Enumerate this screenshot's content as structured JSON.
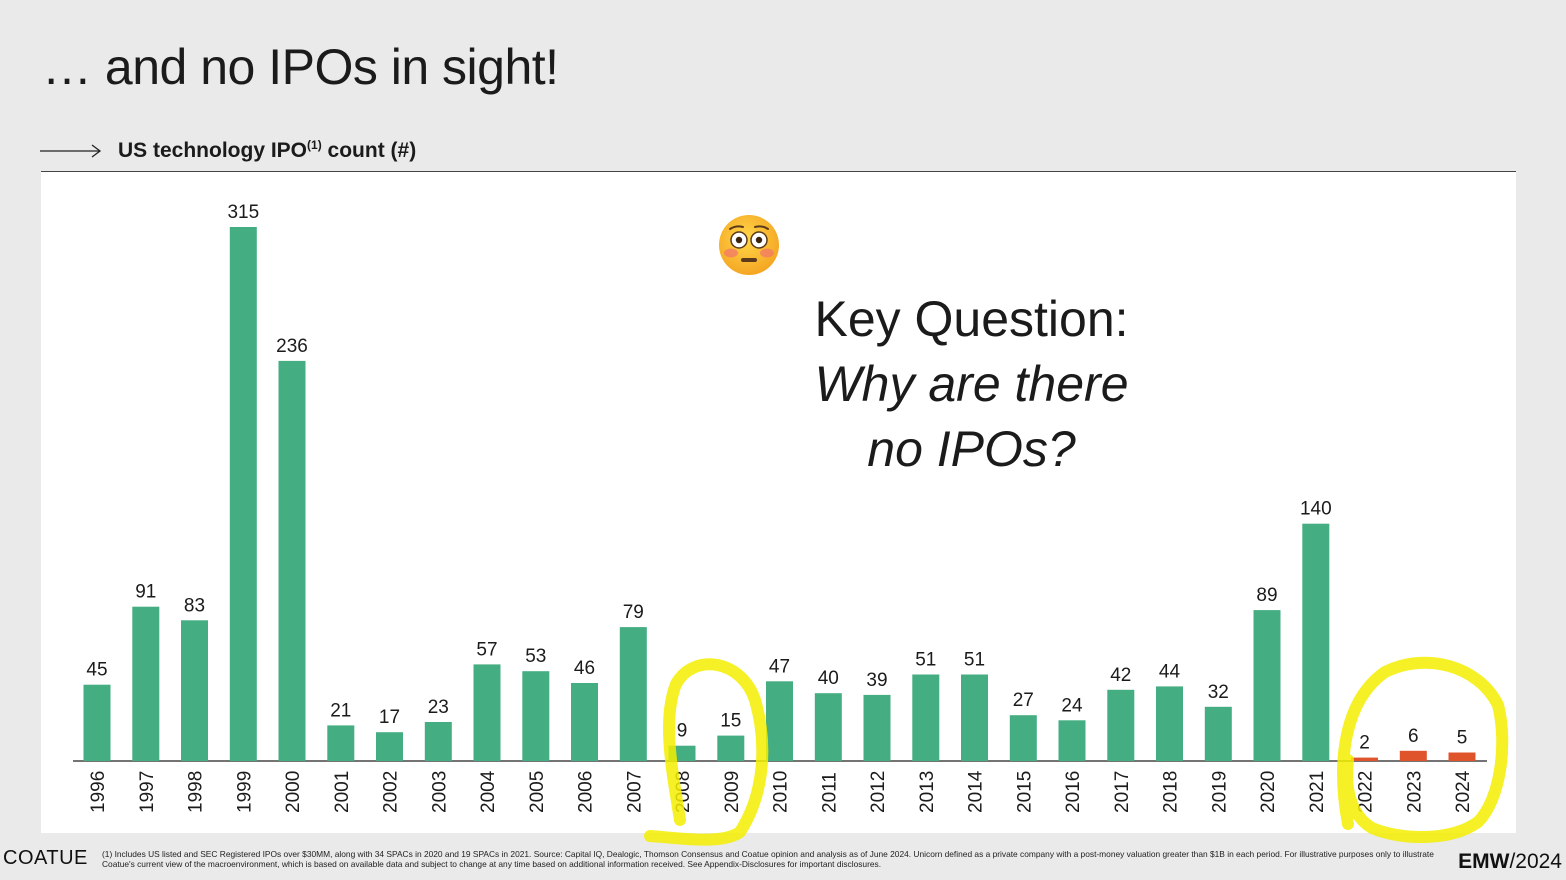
{
  "title": "… and no IPOs in sight!",
  "subtitle": {
    "text": "US technology IPO",
    "superscript": "(1)",
    "suffix": " count (#)"
  },
  "key_question": {
    "line1": "Key Question:",
    "line2": "Why are there no IPOs?"
  },
  "emoji_icon": "flushed-face-icon",
  "footer": {
    "logo": "COATUE",
    "note": "(1) Includes US listed and SEC Registered IPOs over $30MM, along with 34 SPACs in 2020 and 19 SPACs in 2021. Source: Capital IQ, Dealogic, Thomson Consensus and Coatue opinion and analysis as of June 2024. Unicorn defined as a private company with a post-money valuation greater than $1B in each period. For illustrative purposes only to illustrate Coatue's current view of the macroenvironment, which is based on available data and subject to change at any time based on additional information received. See Appendix-Disclosures for important disclosures.",
    "event_bold": "EMW",
    "event_rest": "/2024"
  },
  "colors": {
    "bar_default": "#45ad82",
    "bar_recent": "#e0542c",
    "highlight": "#f3ee00"
  },
  "chart_data": {
    "type": "bar",
    "categories": [
      "1996",
      "1997",
      "1998",
      "1999",
      "2000",
      "2001",
      "2002",
      "2003",
      "2004",
      "2005",
      "2006",
      "2007",
      "2008",
      "2009",
      "2010",
      "2011",
      "2012",
      "2013",
      "2014",
      "2015",
      "2016",
      "2017",
      "2018",
      "2019",
      "2020",
      "2021",
      "2022",
      "2023",
      "2024"
    ],
    "values": [
      45,
      91,
      83,
      315,
      236,
      21,
      17,
      23,
      57,
      53,
      46,
      79,
      9,
      15,
      47,
      40,
      39,
      51,
      51,
      27,
      24,
      42,
      44,
      32,
      89,
      140,
      2,
      6,
      5
    ],
    "highlighted_categories": [
      "2022",
      "2023",
      "2024"
    ],
    "circled_categories": [
      [
        "2008",
        "2009"
      ],
      [
        "2022",
        "2023",
        "2024"
      ]
    ],
    "ylim": [
      0,
      315
    ],
    "grid": false,
    "legend": "none"
  }
}
